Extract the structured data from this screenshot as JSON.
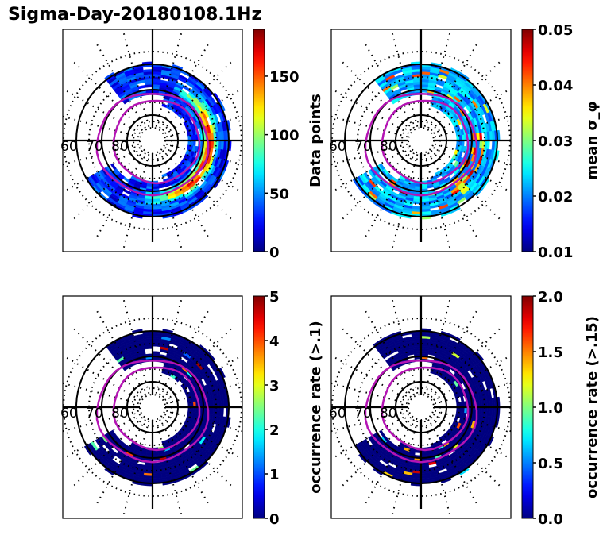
{
  "title": "Sigma-Day-20180108.1Hz",
  "chart_data": [
    {
      "type": "heatmap",
      "projection": "polar",
      "panel": "top-left",
      "colormap": "jet",
      "colorbar": {
        "label": "Data points",
        "range": [
          0,
          190
        ],
        "ticks": [
          0,
          50,
          100,
          150
        ],
        "tick_labels": [
          "0",
          "50",
          "100",
          "150"
        ]
      },
      "latitude_labels": [
        "60",
        "70",
        "80"
      ],
      "description": "Counts of data points in MLT/MLAT bins; ring band between 60-75 MLAT, highest (150-190) on dusk/pre-midnight side near 65-70",
      "oval_overlay": "magenta auroral oval boundaries"
    },
    {
      "type": "heatmap",
      "projection": "polar",
      "panel": "top-right",
      "colormap": "jet",
      "colorbar": {
        "label": "mean σ_φ",
        "range": [
          0.01,
          0.05
        ],
        "ticks": [
          0.01,
          0.02,
          0.03,
          0.04,
          0.05
        ],
        "tick_labels": [
          "0.01",
          "0.02",
          "0.03",
          "0.04",
          "0.05"
        ]
      },
      "latitude_labels": [
        "60",
        "70",
        "80"
      ],
      "description": "Mean phase scintillation index; mostly 0.015-0.03, peaks ~0.05 near dusk-side oval and post-midnight",
      "oval_overlay": "magenta auroral oval boundaries"
    },
    {
      "type": "heatmap",
      "projection": "polar",
      "panel": "bottom-left",
      "colormap": "jet",
      "colorbar": {
        "label": "occurrence rate (>.1)",
        "range": [
          0,
          5
        ],
        "ticks": [
          0,
          1,
          2,
          3,
          4,
          5
        ],
        "tick_labels": [
          "0",
          "1",
          "2",
          "3",
          "4",
          "5"
        ]
      },
      "latitude_labels": [
        "60",
        "70",
        "80"
      ],
      "description": "Occurrence rate of σ_φ > 0.1; mostly 0, isolated bins up to 5",
      "oval_overlay": "magenta auroral oval boundaries"
    },
    {
      "type": "heatmap",
      "projection": "polar",
      "panel": "bottom-right",
      "colormap": "jet",
      "colorbar": {
        "label": "occurrence rate (>.15)",
        "range": [
          0.0,
          2.0
        ],
        "ticks": [
          0.0,
          0.5,
          1.0,
          1.5,
          2.0
        ],
        "tick_labels": [
          "0.0",
          "0.5",
          "1.0",
          "1.5",
          "2.0"
        ]
      },
      "latitude_labels": [
        "60",
        "70",
        "80"
      ],
      "description": "Occurrence rate of σ_φ > 0.15; mostly 0, isolated bins up to 2",
      "oval_overlay": "magenta auroral oval boundaries"
    }
  ]
}
